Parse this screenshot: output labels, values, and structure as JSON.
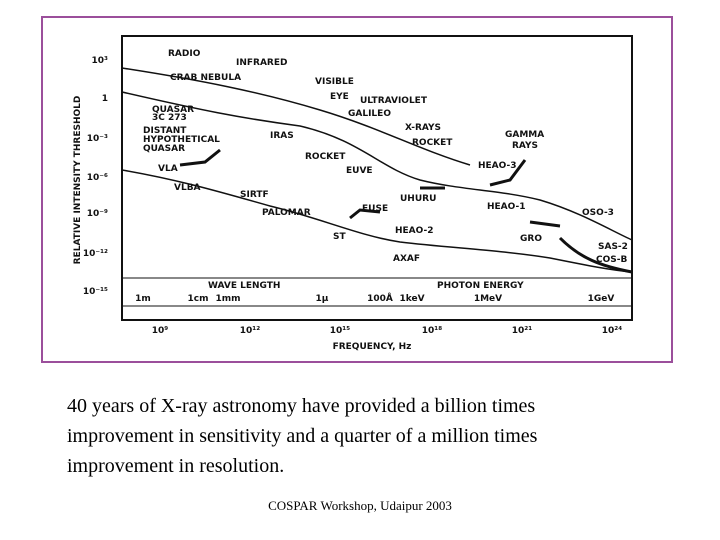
{
  "figure": {
    "y_axis_label": "RELATIVE INTENSITY THRESHOLD",
    "y_tick_labels": [
      "10³",
      "1",
      "10⁻³",
      "10⁻⁶",
      "10⁻⁹",
      "10⁻¹²",
      "10⁻¹⁵"
    ],
    "bands": [
      "RADIO",
      "INFRARED",
      "VISIBLE",
      "ULTRAVIOLET",
      "X-RAYS",
      "GAMMA",
      "RAYS"
    ],
    "objects": [
      "CRAB NEBULA",
      "EYE",
      "GALILEO",
      "QUASAR",
      "3C 273",
      "DISTANT",
      "HYPOTHETICAL",
      "QUASAR",
      "IRAS",
      "ROCKET",
      "ROCKET",
      "HEAO-3",
      "VLA",
      "EUVE",
      "VLBA",
      "SIRTF",
      "UHURU",
      "HEAO-1",
      "OSO-3",
      "PALOMAR",
      "FUSE",
      "HEAO-2",
      "ST",
      "GRO",
      "SAS-2",
      "AXAF",
      "COS-B"
    ],
    "wavelength_title": "WAVE LENGTH",
    "energy_title": "PHOTON ENERGY",
    "scale_labels": [
      "1m",
      "1cm",
      "1mm",
      "1μ",
      "100Å",
      "1keV",
      "1MeV",
      "1GeV"
    ],
    "frequency_tick_labels": [
      "10⁹",
      "10¹²",
      "10¹⁵",
      "10¹⁸",
      "10²¹",
      "10²⁴"
    ],
    "x_axis_label": "FREQUENCY, Hz"
  },
  "caption": [
    "40 years of X-ray astronomy have provided a billion times",
    "improvement in sensitivity and a quarter of a million times",
    "improvement in resolution."
  ],
  "footer": "COSPAR Workshop, Udaipur 2003"
}
